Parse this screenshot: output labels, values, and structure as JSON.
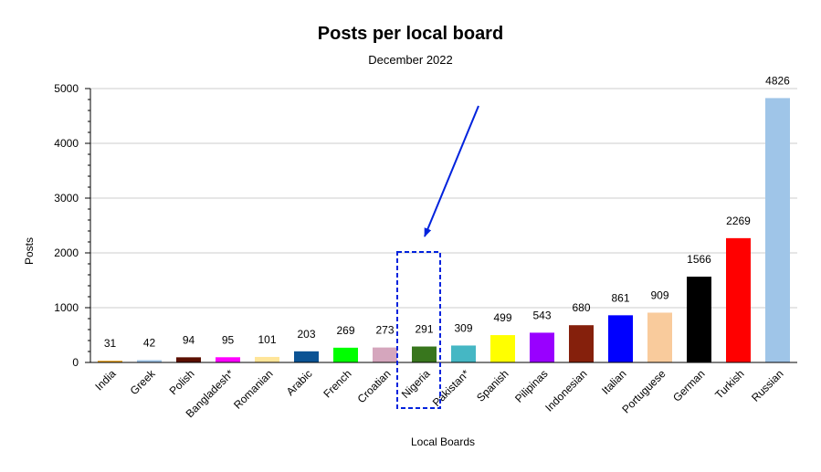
{
  "chart_data": {
    "type": "bar",
    "title": "Posts per local board",
    "subtitle": "December 2022",
    "xlabel": "Local Boards",
    "ylabel": "Posts",
    "ylim": [
      0,
      5000
    ],
    "yticks": [
      0,
      1000,
      2000,
      3000,
      4000,
      5000
    ],
    "grid": true,
    "categories": [
      "India",
      "Greek",
      "Polish",
      "Bangladesh*",
      "Romanian",
      "Arabic",
      "French",
      "Croatian",
      "Nigeria",
      "Pakistan*",
      "Spanish",
      "Pilipinas",
      "Indonesian",
      "Italian",
      "Portuguese",
      "German",
      "Turkish",
      "Russian"
    ],
    "values": [
      31,
      42,
      94,
      95,
      101,
      203,
      269,
      273,
      291,
      309,
      499,
      543,
      680,
      861,
      909,
      1566,
      2269,
      4826
    ],
    "colors": [
      "#e6a11f",
      "#9fc5e8",
      "#5b0f00",
      "#ff00ff",
      "#ffe599",
      "#0b5394",
      "#00ff00",
      "#d5a6bd",
      "#38761d",
      "#45b7c4",
      "#ffff00",
      "#9900ff",
      "#85200c",
      "#0000ff",
      "#f9cb9c",
      "#000000",
      "#ff0000",
      "#9fc5e8"
    ],
    "highlight": {
      "category": "Nigeria",
      "style": "dashed box",
      "color": "#0022dd"
    }
  }
}
